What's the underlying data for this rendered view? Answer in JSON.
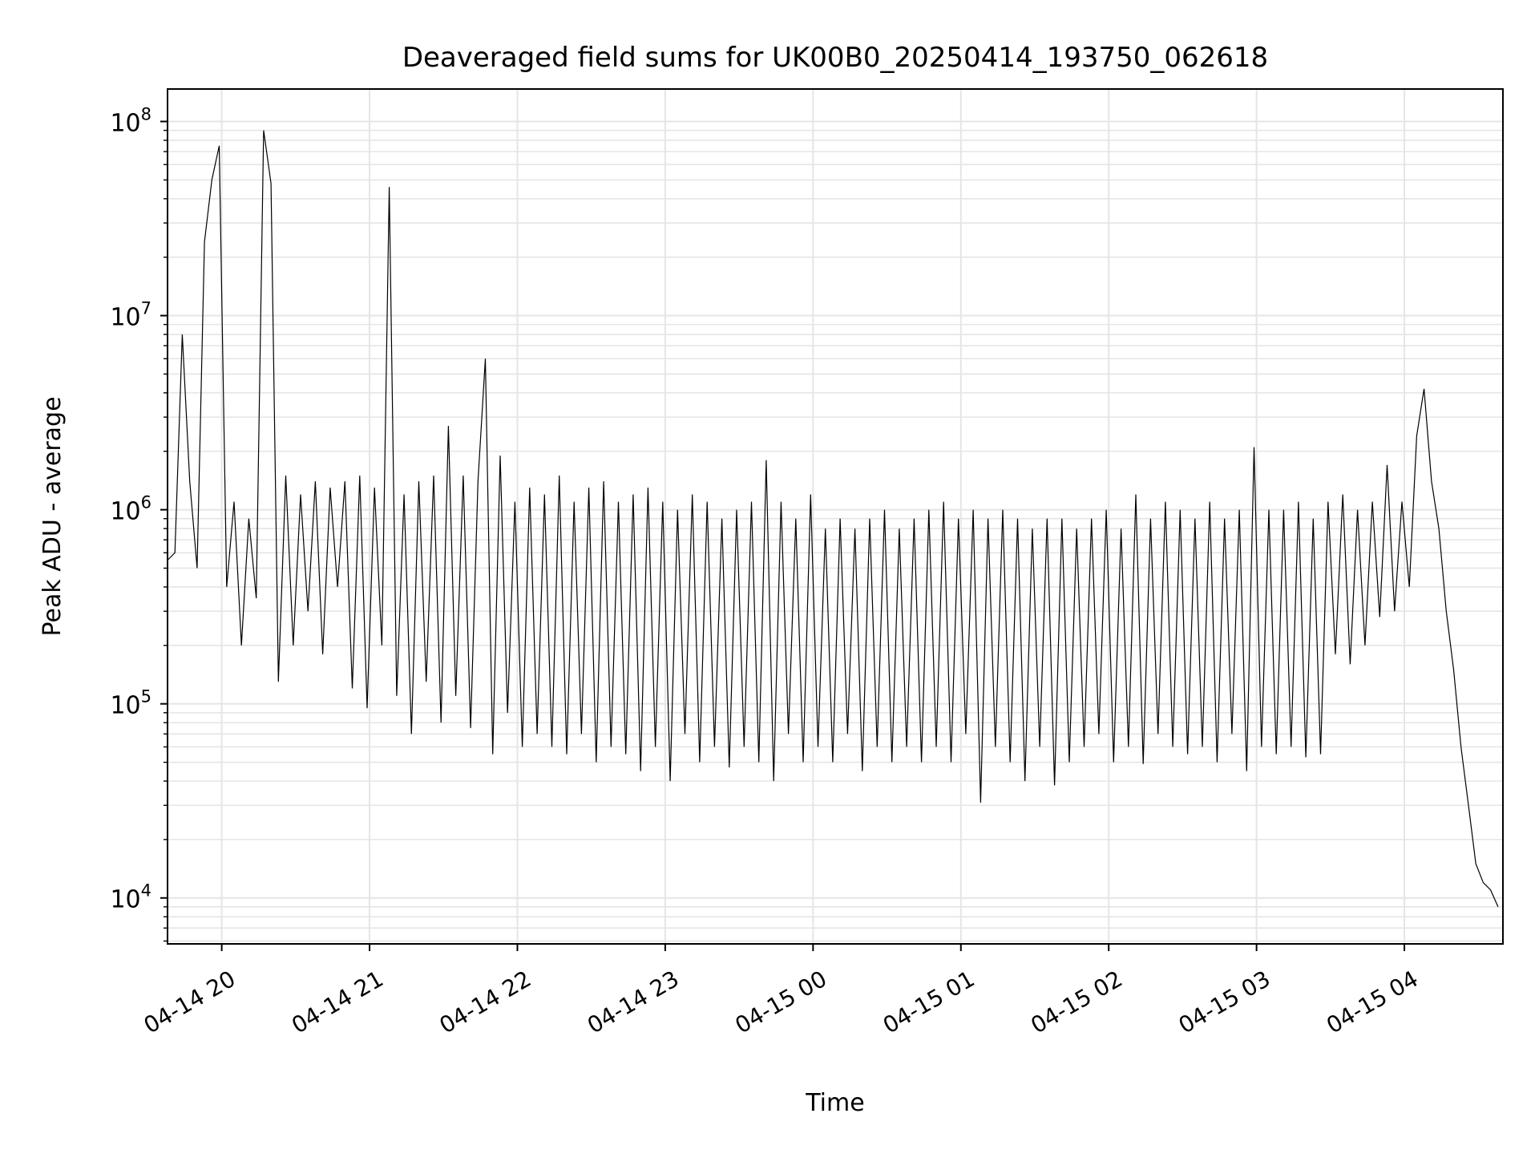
{
  "chart_data": {
    "type": "line",
    "title": "Deaveraged field sums for UK00B0_20250414_193750_062618",
    "xlabel": "Time",
    "ylabel": "Peak ADU - average",
    "yscale": "log",
    "ylim": [
      5800,
      147000000
    ],
    "xlim": [
      "2025-04-14 19:38",
      "2025-04-15 04:40"
    ],
    "grid": true,
    "line_color": "#000000",
    "grid_color": "#e5e5e5",
    "x_start_minutes_after_1938": 0,
    "x_interval_minutes": 3,
    "x_ticks": [
      {
        "label": "04-14 20",
        "minutes_after_1938": 22
      },
      {
        "label": "04-14 21",
        "minutes_after_1938": 82
      },
      {
        "label": "04-14 22",
        "minutes_after_1938": 142
      },
      {
        "label": "04-14 23",
        "minutes_after_1938": 202
      },
      {
        "label": "04-15 00",
        "minutes_after_1938": 262
      },
      {
        "label": "04-15 01",
        "minutes_after_1938": 322
      },
      {
        "label": "04-15 02",
        "minutes_after_1938": 382
      },
      {
        "label": "04-15 03",
        "minutes_after_1938": 442
      },
      {
        "label": "04-15 04",
        "minutes_after_1938": 502
      }
    ],
    "y_ticks": [
      {
        "base": "10",
        "exp": "4",
        "value": 10000
      },
      {
        "base": "10",
        "exp": "5",
        "value": 100000
      },
      {
        "base": "10",
        "exp": "6",
        "value": 1000000
      },
      {
        "base": "10",
        "exp": "7",
        "value": 10000000
      },
      {
        "base": "10",
        "exp": "8",
        "value": 100000000
      }
    ],
    "values": [
      550000.0,
      600000.0,
      8000000.0,
      1400000.0,
      500000.0,
      24000000.0,
      50000000.0,
      75000000.0,
      400000.0,
      1100000.0,
      200000.0,
      900000.0,
      350000.0,
      90000000.0,
      48000000.0,
      130000.0,
      1500000.0,
      200000.0,
      1200000.0,
      300000.0,
      1400000.0,
      180000.0,
      1300000.0,
      400000.0,
      1400000.0,
      120000.0,
      1500000.0,
      95000.0,
      1300000.0,
      200000.0,
      46000000.0,
      110000.0,
      1200000.0,
      70000.0,
      1400000.0,
      130000.0,
      1500000.0,
      80000.0,
      2700000.0,
      110000.0,
      1500000.0,
      75000.0,
      1400000.0,
      6000000.0,
      55000.0,
      1900000.0,
      90000.0,
      1100000.0,
      60000.0,
      1300000.0,
      70000.0,
      1200000.0,
      60000.0,
      1500000.0,
      55000.0,
      1100000.0,
      70000.0,
      1300000.0,
      50000.0,
      1400000.0,
      60000.0,
      1100000.0,
      55000.0,
      1200000.0,
      45000.0,
      1300000.0,
      60000.0,
      1100000.0,
      40000.0,
      1000000.0,
      70000.0,
      1200000.0,
      50000.0,
      1100000.0,
      60000.0,
      900000.0,
      47000.0,
      1000000.0,
      60000.0,
      1100000.0,
      50000.0,
      1800000.0,
      40000.0,
      1100000.0,
      70000.0,
      900000.0,
      50000.0,
      1200000.0,
      60000.0,
      800000.0,
      50000.0,
      900000.0,
      70000.0,
      800000.0,
      45000.0,
      900000.0,
      60000.0,
      1000000.0,
      50000.0,
      800000.0,
      60000.0,
      900000.0,
      50000.0,
      1000000.0,
      60000.0,
      1100000.0,
      50000.0,
      900000.0,
      70000.0,
      1000000.0,
      31000.0,
      900000.0,
      60000.0,
      1000000.0,
      50000.0,
      900000.0,
      40000.0,
      800000.0,
      60000.0,
      900000.0,
      38000.0,
      900000.0,
      50000.0,
      800000.0,
      60000.0,
      900000.0,
      70000.0,
      1000000.0,
      50000.0,
      800000.0,
      60000.0,
      1200000.0,
      49000.0,
      900000.0,
      70000.0,
      1100000.0,
      60000.0,
      1000000.0,
      55000.0,
      900000.0,
      60000.0,
      1100000.0,
      50000.0,
      900000.0,
      70000.0,
      1000000.0,
      45000.0,
      2100000.0,
      60000.0,
      1000000.0,
      55000.0,
      1000000.0,
      60000.0,
      1100000.0,
      53000.0,
      900000.0,
      55000.0,
      1100000.0,
      180000.0,
      1200000.0,
      160000.0,
      1000000.0,
      200000.0,
      1100000.0,
      280000.0,
      1700000.0,
      300000.0,
      1100000.0,
      400000.0,
      2400000.0,
      4200000.0,
      1400000.0,
      800000.0,
      300000.0,
      150000.0,
      60000.0,
      30000.0,
      15000.0,
      12000.0,
      11000.0,
      9000.0
    ]
  }
}
